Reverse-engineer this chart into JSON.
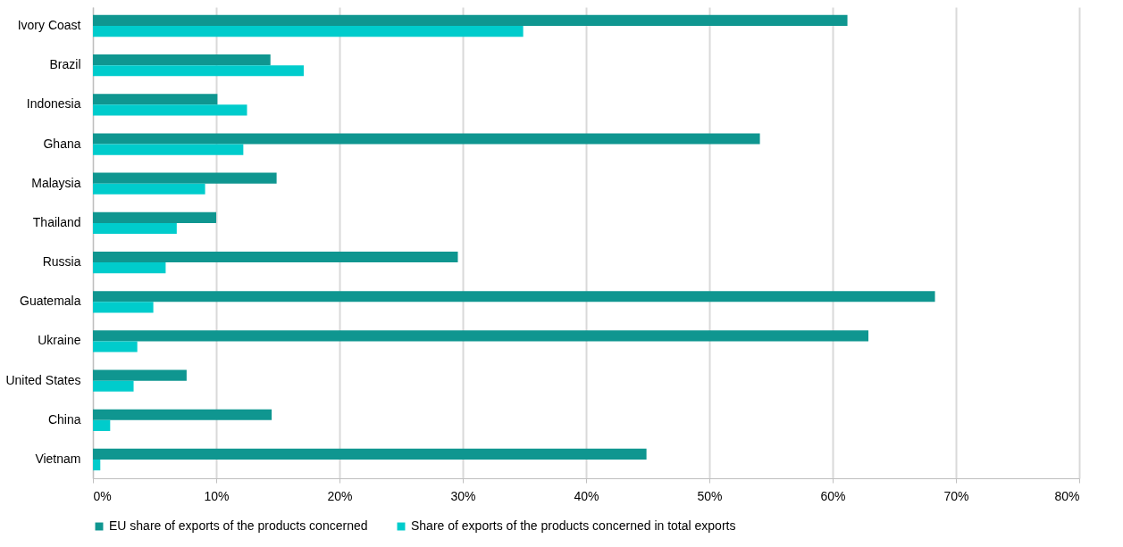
{
  "chart_data": {
    "type": "bar",
    "orientation": "horizontal",
    "categories": [
      "Ivory Coast",
      "Brazil",
      "Indonesia",
      "Ghana",
      "Malaysia",
      "Thailand",
      "Russia",
      "Guatemala",
      "Ukraine",
      "United States",
      "China",
      "Vietnam"
    ],
    "series": [
      {
        "name": "EU share of exports of the products concerned",
        "color": "#0f9690",
        "values": [
          61.2,
          14.4,
          10.1,
          54.1,
          14.9,
          10.0,
          29.6,
          68.3,
          62.9,
          7.6,
          14.5,
          44.9
        ]
      },
      {
        "name": "Share of exports of the products concerned in total exports",
        "color": "#00cccc",
        "values": [
          34.9,
          17.1,
          12.5,
          12.2,
          9.1,
          6.8,
          5.9,
          4.9,
          3.6,
          3.3,
          1.4,
          0.6
        ]
      }
    ],
    "xlim": [
      0,
      80
    ],
    "xticks": [
      {
        "value": 0,
        "label": "0%"
      },
      {
        "value": 10,
        "label": "10%"
      },
      {
        "value": 20,
        "label": "20%"
      },
      {
        "value": 30,
        "label": "30%"
      },
      {
        "value": 40,
        "label": "40%"
      },
      {
        "value": 50,
        "label": "50%"
      },
      {
        "value": 60,
        "label": "60%"
      },
      {
        "value": 70,
        "label": "70%"
      },
      {
        "value": 80,
        "label": "80%"
      }
    ],
    "grid": "x",
    "legend": "bottom"
  }
}
